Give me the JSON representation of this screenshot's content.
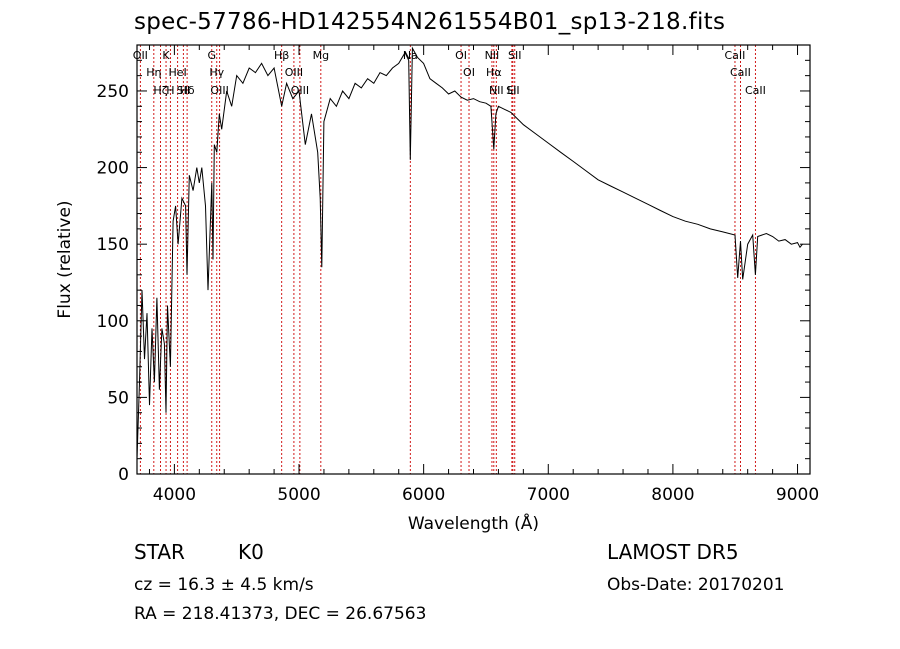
{
  "header": {
    "title": "spec-57786-HD142554N261554B01_sp13-218.fits"
  },
  "footer": {
    "class_type": "STAR",
    "subclass": "K0",
    "survey": "LAMOST DR5",
    "cz": "cz = 16.3 ± 4.5 km/s",
    "obs_date": "Obs-Date: 20170201",
    "radec": "RA = 218.41373, DEC =  26.67563"
  },
  "colors": {
    "line": "#000000",
    "marker": "#cc0000",
    "background": "#ffffff"
  },
  "chart_data": {
    "type": "line",
    "title": "spec-57786-HD142554N261554B01_sp13-218.fits",
    "xlabel": "Wavelength (Å)",
    "ylabel": "Flux (relative)",
    "xlim": [
      3700,
      9100
    ],
    "ylim": [
      0,
      280
    ],
    "xticks": [
      4000,
      5000,
      6000,
      7000,
      8000,
      9000
    ],
    "yticks": [
      0,
      50,
      100,
      150,
      200,
      250
    ],
    "grid": false,
    "series": [
      {
        "x": [
          3700,
          3720,
          3740,
          3760,
          3780,
          3800,
          3820,
          3840,
          3860,
          3880,
          3900,
          3920,
          3933,
          3945,
          3968,
          3990,
          4010,
          4030,
          4060,
          4090,
          4101,
          4120,
          4150,
          4180,
          4200,
          4220,
          4250,
          4270,
          4300,
          4310,
          4320,
          4340,
          4360,
          4380,
          4420,
          4460,
          4500,
          4550,
          4600,
          4650,
          4700,
          4750,
          4800,
          4861,
          4900,
          4950,
          5000,
          5050,
          5100,
          5150,
          5170,
          5183,
          5200,
          5250,
          5300,
          5350,
          5400,
          5450,
          5500,
          5550,
          5600,
          5650,
          5700,
          5750,
          5800,
          5850,
          5880,
          5893,
          5910,
          5950,
          6000,
          6050,
          6100,
          6150,
          6200,
          6250,
          6300,
          6350,
          6400,
          6450,
          6500,
          6540,
          6563,
          6580,
          6600,
          6650,
          6700,
          6750,
          6800,
          6900,
          7000,
          7100,
          7200,
          7300,
          7400,
          7500,
          7600,
          7700,
          7800,
          7900,
          8000,
          8100,
          8200,
          8300,
          8400,
          8498,
          8520,
          8542,
          8560,
          8600,
          8640,
          8662,
          8680,
          8750,
          8800,
          8850,
          8900,
          8950,
          9000,
          9020,
          9040
        ],
        "y": [
          10,
          60,
          120,
          75,
          105,
          45,
          95,
          60,
          115,
          55,
          95,
          85,
          40,
          110,
          70,
          165,
          175,
          150,
          180,
          175,
          130,
          195,
          185,
          200,
          190,
          200,
          175,
          120,
          190,
          140,
          215,
          210,
          235,
          225,
          250,
          240,
          260,
          255,
          265,
          262,
          268,
          260,
          265,
          240,
          255,
          245,
          250,
          215,
          235,
          210,
          180,
          135,
          230,
          245,
          240,
          250,
          245,
          255,
          252,
          258,
          255,
          262,
          260,
          265,
          268,
          275,
          270,
          205,
          278,
          272,
          268,
          258,
          255,
          252,
          248,
          250,
          246,
          244,
          245,
          243,
          242,
          240,
          212,
          235,
          240,
          238,
          236,
          232,
          228,
          222,
          216,
          210,
          204,
          198,
          192,
          188,
          184,
          180,
          176,
          172,
          168,
          165,
          163,
          160,
          158,
          156,
          128,
          152,
          127,
          150,
          156,
          130,
          155,
          157,
          155,
          152,
          153,
          150,
          151,
          148,
          150
        ]
      }
    ],
    "lines": [
      {
        "x": 3727,
        "label": "OII"
      },
      {
        "x": 3835,
        "label": "Hη"
      },
      {
        "x": 3889,
        "label": "Hζ"
      },
      {
        "x": 3933,
        "label": "K"
      },
      {
        "x": 3968,
        "label": "H"
      },
      {
        "x": 4026,
        "label": "HeI"
      },
      {
        "x": 4072,
        "label": "SII"
      },
      {
        "x": 4102,
        "label": "Hδ"
      },
      {
        "x": 4300,
        "label": "G"
      },
      {
        "x": 4340,
        "label": "Hγ"
      },
      {
        "x": 4363,
        "label": "OIII"
      },
      {
        "x": 4861,
        "label": "Hβ"
      },
      {
        "x": 4959,
        "label": "OIII"
      },
      {
        "x": 5007,
        "label": "OIII"
      },
      {
        "x": 5175,
        "label": "Mg"
      },
      {
        "x": 5893,
        "label": "Na"
      },
      {
        "x": 6300,
        "label": "OI"
      },
      {
        "x": 6364,
        "label": "OI"
      },
      {
        "x": 6548,
        "label": "NII"
      },
      {
        "x": 6563,
        "label": "Hα"
      },
      {
        "x": 6583,
        "label": "NII"
      },
      {
        "x": 6708,
        "label": "Li"
      },
      {
        "x": 6716,
        "label": "SII"
      },
      {
        "x": 6731,
        "label": "SII"
      },
      {
        "x": 8498,
        "label": "CaII"
      },
      {
        "x": 8542,
        "label": "CaII"
      },
      {
        "x": 8662,
        "label": "CaII"
      }
    ]
  }
}
